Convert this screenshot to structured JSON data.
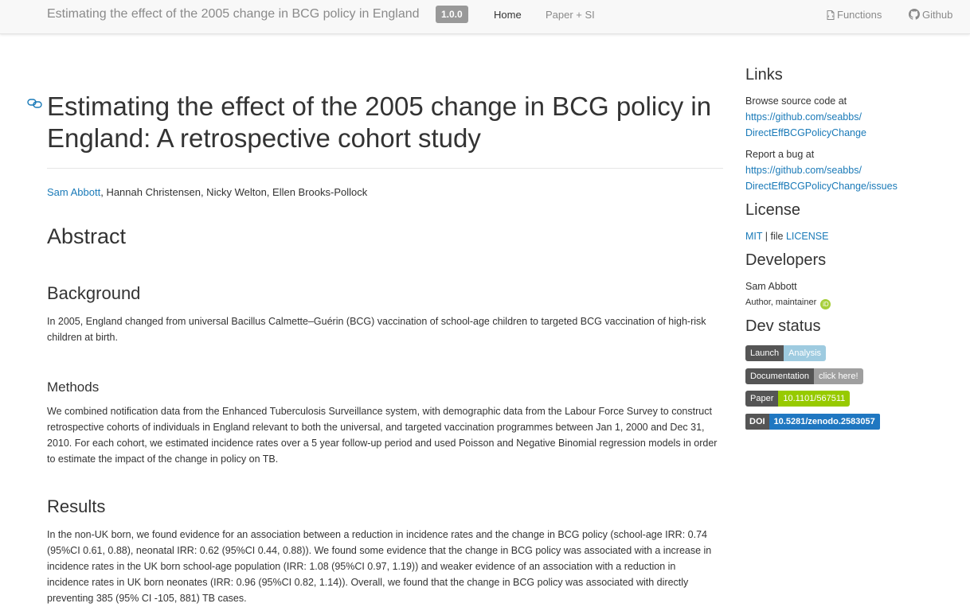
{
  "navbar": {
    "brand": "Estimating the effect of the 2005 change in BCG policy in England",
    "version": "1.0.0",
    "home": "Home",
    "paper": "Paper + SI",
    "functions": "Functions",
    "github": "Github"
  },
  "main": {
    "title": "Estimating the effect of the 2005 change in BCG policy in England: A retrospective cohort study",
    "author_link": "Sam Abbott",
    "authors_rest": ", Hannah Christensen, Nicky Welton, Ellen Brooks-Pollock",
    "abstract_heading": "Abstract",
    "background_heading": "Background",
    "background_text": "In 2005, England changed from universal Bacillus Calmette–Guérin (BCG) vaccination of school-age children to targeted BCG vaccination of high-risk children at birth.",
    "methods_heading": "Methods",
    "methods_text": "We combined notification data from the Enhanced Tuberculosis Surveillance system, with demographic data from the Labour Force Survey to construct retrospective cohorts of individuals in England relevant to both the universal, and targeted vaccination programmes between Jan 1, 2000 and Dec 31, 2010. For each cohort, we estimated incidence rates over a 5 year follow-up period and used Poisson and Negative Binomial regression models in order to estimate the impact of the change in policy on TB.",
    "results_heading": "Results",
    "results_text": "In the non-UK born, we found evidence for an association between a reduction in incidence rates and the change in BCG policy (school-age IRR: 0.74 (95%CI 0.61, 0.88), neonatal IRR: 0.62 (95%CI 0.44, 0.88)). We found some evidence that the change in BCG policy was associated with a increase in incidence rates in the UK born school-age population (IRR: 1.08 (95%CI 0.97, 1.19)) and weaker evidence of an association with a reduction in incidence rates in UK born neonates (IRR: 0.96 (95%CI 0.82, 1.14)). Overall, we found that the change in BCG policy was associated with directly preventing 385 (95% CI -105, 881) TB cases."
  },
  "sidebar": {
    "links_heading": "Links",
    "browse_text": "Browse source code at",
    "browse_link_1": "https://github.com/seabbs/",
    "browse_link_2": "DirectEffBCGPolicyChange",
    "bug_text": "Report a bug at",
    "bug_link_1": "https://github.com/seabbs/",
    "bug_link_2": "DirectEffBCGPolicyChange/issues",
    "license_heading": "License",
    "license_mit": "MIT",
    "license_sep": " | file ",
    "license_file": "LICENSE",
    "developers_heading": "Developers",
    "dev_name": "Sam Abbott",
    "dev_role": "Author, maintainer",
    "orcid_label": "iD",
    "devstatus_heading": "Dev status",
    "badges": {
      "launch_label": "Launch",
      "launch_msg": "Analysis",
      "doc_label": "Documentation",
      "doc_msg": "click here!",
      "paper_label": "Paper",
      "paper_msg": "10.1101/567511",
      "doi_label": "DOI",
      "doi_msg": "10.5281/zenodo.2583057"
    }
  },
  "colors": {
    "link": "#1a7ab8",
    "navbar_bg": "#f8f8f8",
    "badge_dark": "#555555",
    "badge_doi": "#1f77c1",
    "badge_paper": "#97ca00"
  },
  "icons": [
    "link-icon",
    "file-icon",
    "github-icon",
    "orcid-icon"
  ]
}
